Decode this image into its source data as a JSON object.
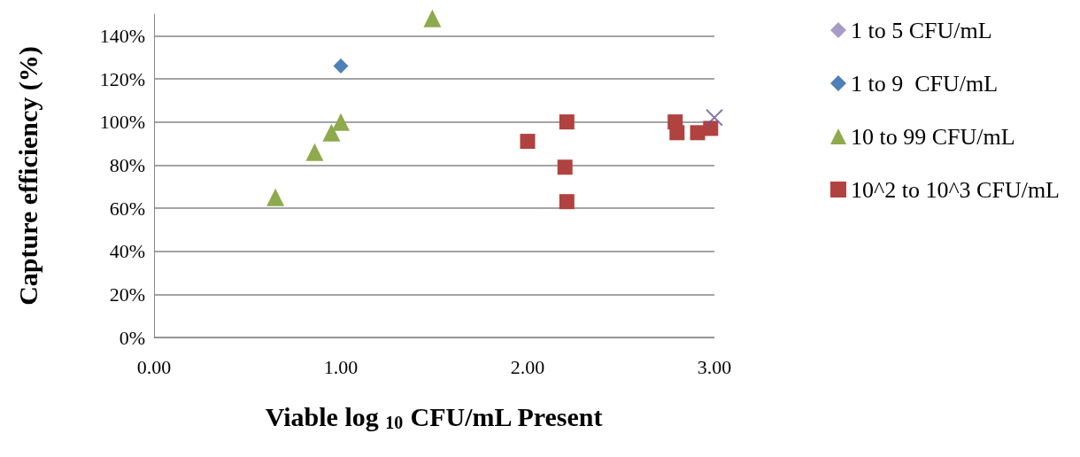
{
  "chart_data": {
    "type": "scatter",
    "xlabel": "Viable log $_{10}$ CFU/mL Present",
    "ylabel": "Capture efficiency (%)",
    "xlim": [
      0,
      3
    ],
    "xticks": [
      {
        "value": 0,
        "label": "0.00"
      },
      {
        "value": 1,
        "label": "1.00"
      },
      {
        "value": 2,
        "label": "2.00"
      },
      {
        "value": 3,
        "label": "3.00"
      }
    ],
    "ylim": [
      0,
      150
    ],
    "yticks": [
      {
        "value": 0,
        "label": "0%"
      },
      {
        "value": 20,
        "label": "20%"
      },
      {
        "value": 40,
        "label": "40%"
      },
      {
        "value": 60,
        "label": "60%"
      },
      {
        "value": 80,
        "label": "80%"
      },
      {
        "value": 100,
        "label": "100%"
      },
      {
        "value": 120,
        "label": "120%"
      },
      {
        "value": 140,
        "label": "140%"
      }
    ],
    "grid": "y",
    "legend": "right",
    "series": [
      {
        "name": "1 to 5 CFU/mL",
        "color": "#a99bc8",
        "marker": "diamond"
      },
      {
        "name": "1 to 9  CFU/mL",
        "color": "#4f7fb8",
        "marker": "diamond",
        "x": [
          1.0
        ],
        "values": [
          126
        ]
      },
      {
        "name": "10 to 99 CFU/mL",
        "color": "#8eaa4c",
        "marker": "triangle",
        "x": [
          0.65,
          0.86,
          0.95,
          1.0,
          1.49
        ],
        "values": [
          65,
          86,
          95,
          100,
          148
        ]
      },
      {
        "name": "10^2 to 10^3 CFU/mL",
        "color": "#b0423f",
        "marker": "square",
        "x": [
          2.0,
          2.21,
          2.2,
          2.21,
          2.79,
          2.8,
          2.91,
          2.98
        ],
        "values": [
          91,
          100,
          79,
          63,
          100,
          95,
          95,
          97
        ]
      },
      {
        "color": "#6a559a",
        "marker": "cross",
        "x": [
          3.0
        ],
        "values": [
          102
        ]
      }
    ]
  }
}
